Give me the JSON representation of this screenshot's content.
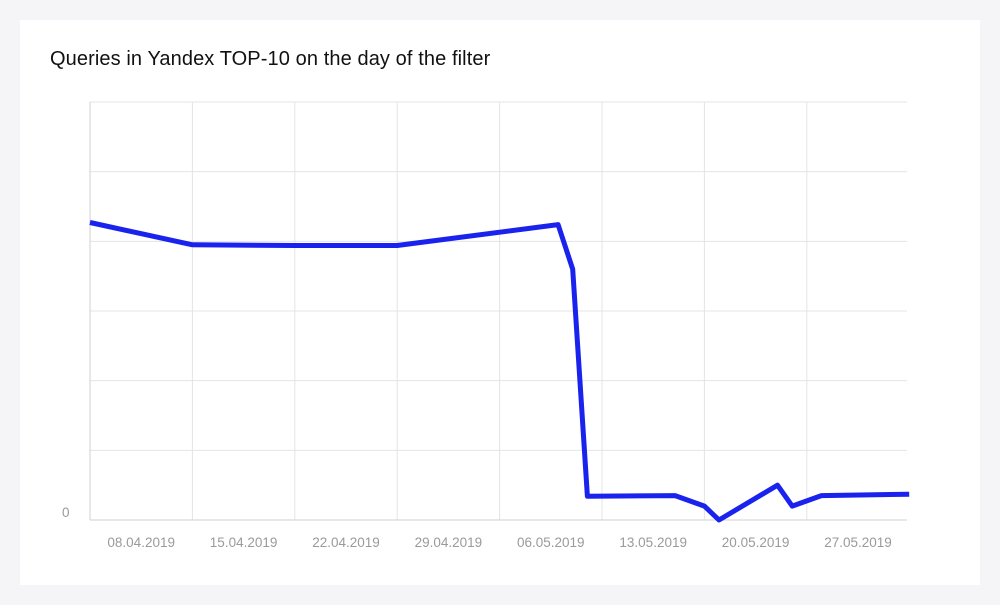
{
  "chart_data": {
    "type": "line",
    "title": "Queries in Yandex TOP-10 on the day of the filter",
    "xlabel": "",
    "ylabel": "",
    "x_tick_labels": [
      "08.04.2019",
      "15.04.2019",
      "22.04.2019",
      "29.04.2019",
      "06.05.2019",
      "13.05.2019",
      "20.05.2019",
      "27.05.2019"
    ],
    "y_tick_labels": [
      "0"
    ],
    "ylim": [
      0,
      6
    ],
    "grid": true,
    "series": [
      {
        "color": "#1a22ee",
        "points": [
          {
            "x": "08.04.2019",
            "y": 4.27
          },
          {
            "x": "15.04.2019",
            "y": 3.95
          },
          {
            "x": "22.04.2019",
            "y": 3.94
          },
          {
            "x": "29.04.2019",
            "y": 3.94
          },
          {
            "x": "06.05.2019",
            "y": 4.08
          },
          {
            "x": "06.05.2019",
            "y": 4.08
          },
          {
            "x": "06.05.2019",
            "y": 4.08
          }
        ]
      }
    ],
    "values": [
      {
        "x": "2019-04-08",
        "y": 4.27
      },
      {
        "x": "2019-04-15",
        "y": 3.95
      },
      {
        "x": "2019-04-22",
        "y": 3.94
      },
      {
        "x": "2019-04-29",
        "y": 3.94
      },
      {
        "x": "2019-05-10",
        "y": 4.24
      },
      {
        "x": "2019-05-11",
        "y": 3.6
      },
      {
        "x": "2019-05-12",
        "y": 0.34
      },
      {
        "x": "2019-05-18",
        "y": 0.35
      },
      {
        "x": "2019-05-20",
        "y": 0.2
      },
      {
        "x": "2019-05-21",
        "y": 0.0
      },
      {
        "x": "2019-05-25",
        "y": 0.5
      },
      {
        "x": "2019-05-26",
        "y": 0.2
      },
      {
        "x": "2019-05-28",
        "y": 0.35
      },
      {
        "x": "2019-06-03",
        "y": 0.37
      }
    ]
  }
}
